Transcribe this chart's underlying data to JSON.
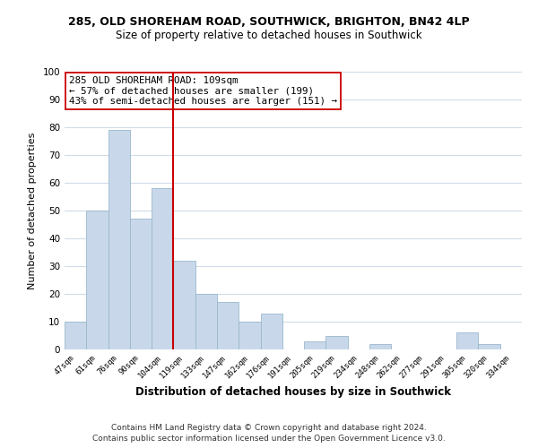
{
  "title_line1": "285, OLD SHOREHAM ROAD, SOUTHWICK, BRIGHTON, BN42 4LP",
  "title_line2": "Size of property relative to detached houses in Southwick",
  "xlabel": "Distribution of detached houses by size in Southwick",
  "ylabel": "Number of detached properties",
  "bar_color": "#c8d8ea",
  "bar_edge_color": "#9ab8cc",
  "categories": [
    "47sqm",
    "61sqm",
    "76sqm",
    "90sqm",
    "104sqm",
    "119sqm",
    "133sqm",
    "147sqm",
    "162sqm",
    "176sqm",
    "191sqm",
    "205sqm",
    "219sqm",
    "234sqm",
    "248sqm",
    "262sqm",
    "277sqm",
    "291sqm",
    "305sqm",
    "320sqm",
    "334sqm"
  ],
  "values": [
    10,
    50,
    79,
    47,
    58,
    32,
    20,
    17,
    10,
    13,
    0,
    3,
    5,
    0,
    2,
    0,
    0,
    0,
    6,
    2,
    0
  ],
  "vline_x_idx": 4.5,
  "vline_color": "#cc0000",
  "annotation_line1": "285 OLD SHOREHAM ROAD: 109sqm",
  "annotation_line2": "← 57% of detached houses are smaller (199)",
  "annotation_line3": "43% of semi-detached houses are larger (151) →",
  "annotation_box_color": "#ffffff",
  "annotation_box_edge": "#cc0000",
  "ylim": [
    0,
    100
  ],
  "yticks": [
    0,
    10,
    20,
    30,
    40,
    50,
    60,
    70,
    80,
    90,
    100
  ],
  "footnote1": "Contains HM Land Registry data © Crown copyright and database right 2024.",
  "footnote2": "Contains public sector information licensed under the Open Government Licence v3.0.",
  "background_color": "#ffffff",
  "grid_color": "#d0dce8",
  "title1_fontsize": 9.0,
  "title2_fontsize": 8.5,
  "xlabel_fontsize": 8.5,
  "ylabel_fontsize": 8.0,
  "annot_fontsize": 7.8,
  "footnote_fontsize": 6.5,
  "xtick_fontsize": 6.5,
  "ytick_fontsize": 7.5
}
